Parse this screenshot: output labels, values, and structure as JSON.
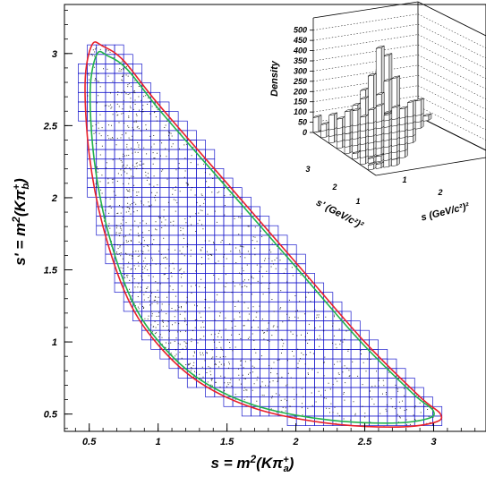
{
  "chart_data": [
    {
      "type": "scatter",
      "title": "",
      "xlabel": "s = m²(Kπa⁺)",
      "ylabel": "s' = m²(Kπb⁺)",
      "xlim": [
        0.32,
        3.38
      ],
      "ylim": [
        0.38,
        3.34
      ],
      "xticks": [
        "0.5",
        "1",
        "1.5",
        "2",
        "2.5",
        "3"
      ],
      "yticks": [
        "0.5",
        "1",
        "1.5",
        "2",
        "2.5",
        "3"
      ],
      "bins": {
        "x_range": [
          0.42,
          3.06
        ],
        "y_range": [
          0.42,
          3.06
        ],
        "bin_width": 0.066
      },
      "boundary_colors": {
        "kinematic": "#e8202a",
        "inner": "#21b24b",
        "grid": "#1a1acc",
        "points": "#000000"
      },
      "boundary_curve": [
        [
          0.52,
          3.06
        ],
        [
          0.47,
          2.8
        ],
        [
          0.5,
          2.3
        ],
        [
          0.6,
          1.8
        ],
        [
          0.78,
          1.3
        ],
        [
          1.0,
          0.98
        ],
        [
          1.3,
          0.72
        ],
        [
          1.7,
          0.54
        ],
        [
          2.2,
          0.44
        ],
        [
          2.7,
          0.41
        ],
        [
          3.0,
          0.44
        ],
        [
          3.05,
          0.5
        ],
        [
          2.9,
          0.62
        ],
        [
          2.5,
          1.0
        ],
        [
          2.0,
          1.55
        ],
        [
          1.5,
          2.1
        ],
        [
          1.0,
          2.65
        ],
        [
          0.75,
          2.95
        ],
        [
          0.6,
          3.05
        ]
      ]
    },
    {
      "type": "lego3d",
      "xlabel": "s (GeV/c²)²",
      "ylabel": "s' (GeV/c²)²",
      "zlabel": "Density",
      "zticks": [
        "0",
        "50",
        "100",
        "150",
        "200",
        "250",
        "300",
        "350",
        "400",
        "450",
        "500"
      ],
      "x_ticks": [
        "1",
        "2"
      ],
      "y_ticks": [
        "1",
        "2",
        "3"
      ],
      "zlim": [
        0,
        560
      ]
    }
  ]
}
